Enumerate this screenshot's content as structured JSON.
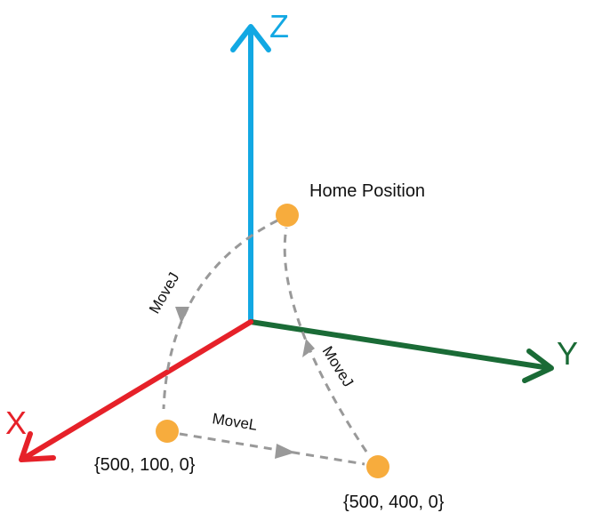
{
  "axes": {
    "x": {
      "label": "X",
      "color": "#e62129"
    },
    "y": {
      "label": "Y",
      "color": "#1a6b36"
    },
    "z": {
      "label": "Z",
      "color": "#12a8e3"
    }
  },
  "points": {
    "home": {
      "label": "Home Position",
      "color": "#f7ac3d"
    },
    "p1": {
      "label": "{500, 100, 0}",
      "color": "#f7ac3d"
    },
    "p2": {
      "label": "{500, 400, 0}",
      "color": "#f7ac3d"
    }
  },
  "moves": {
    "home_to_p1": {
      "label": "MoveJ"
    },
    "p1_to_p2": {
      "label": "MoveL"
    },
    "p2_to_home": {
      "label": "MoveJ"
    }
  },
  "path_color": "#999999"
}
